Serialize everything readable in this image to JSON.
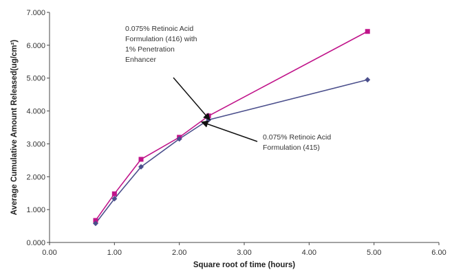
{
  "chart_data": {
    "type": "line",
    "xlabel": "Square root of time (hours)",
    "ylabel": "Average Cumulative Amount Released(ug/cm²)",
    "xlim": [
      0,
      6
    ],
    "ylim": [
      0,
      7000
    ],
    "x_ticks": [
      "0.00",
      "1.00",
      "2.00",
      "3.00",
      "4.00",
      "5.00",
      "6.00"
    ],
    "y_ticks": [
      "0.000",
      "1.000",
      "2.000",
      "3.000",
      "4.000",
      "5.000",
      "6.000",
      "7.000"
    ],
    "grid": false,
    "series": [
      {
        "color": "#c0148a",
        "marker": "square",
        "x": [
          0.71,
          1.0,
          1.41,
          2.0,
          2.45,
          4.9
        ],
        "y": [
          670,
          1480,
          2530,
          3200,
          3850,
          6420
        ]
      },
      {
        "color": "#4b4f8c",
        "marker": "diamond",
        "x": [
          0.71,
          1.0,
          1.41,
          2.0,
          2.45,
          4.9
        ],
        "y": [
          580,
          1330,
          2300,
          3150,
          3730,
          4950
        ]
      }
    ],
    "annotations": [
      {
        "lines": [
          "0.075% Retinoic Acid",
          "Formulation (416) with",
          "1% Penetration",
          "Enhancer"
        ],
        "points_to": [
          2.45,
          3850
        ]
      },
      {
        "lines": [
          "0.075% Retinoic Acid",
          "Formulation (415)"
        ],
        "points_to": [
          2.3,
          3500
        ]
      }
    ]
  }
}
